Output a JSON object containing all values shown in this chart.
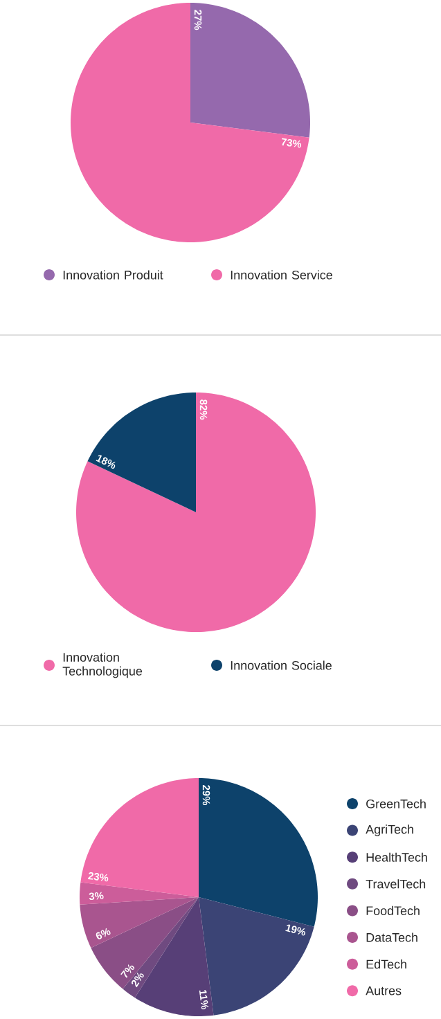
{
  "chart_data": [
    {
      "type": "pie",
      "categories": [
        "Innovation Produit",
        "Innovation Service"
      ],
      "values": [
        27,
        73
      ],
      "value_labels": [
        "27%",
        "73%"
      ],
      "colors": [
        "#9569ad",
        "#f06aa8"
      ],
      "legend": "bottom"
    },
    {
      "type": "pie",
      "categories": [
        "Innovation Technologique",
        "Innovation Sociale"
      ],
      "values": [
        82,
        18
      ],
      "value_labels": [
        "82%",
        "18%"
      ],
      "colors": [
        "#f06aa8",
        "#0d426b"
      ],
      "legend": "bottom"
    },
    {
      "type": "pie",
      "categories": [
        "GreenTech",
        "AgriTech",
        "HealthTech",
        "TravelTech",
        "FoodTech",
        "DataTech",
        "EdTech",
        "Autres"
      ],
      "values": [
        29,
        19,
        11,
        2,
        7,
        6,
        3,
        23
      ],
      "value_labels": [
        "29%",
        "19%",
        "11%",
        "2%",
        "7%",
        "6%",
        "3%",
        "23%"
      ],
      "colors": [
        "#0d426b",
        "#3b4475",
        "#573f77",
        "#6f4a80",
        "#8a4e86",
        "#a9558f",
        "#cc5d9a",
        "#f06aa8"
      ],
      "legend": "right"
    }
  ]
}
